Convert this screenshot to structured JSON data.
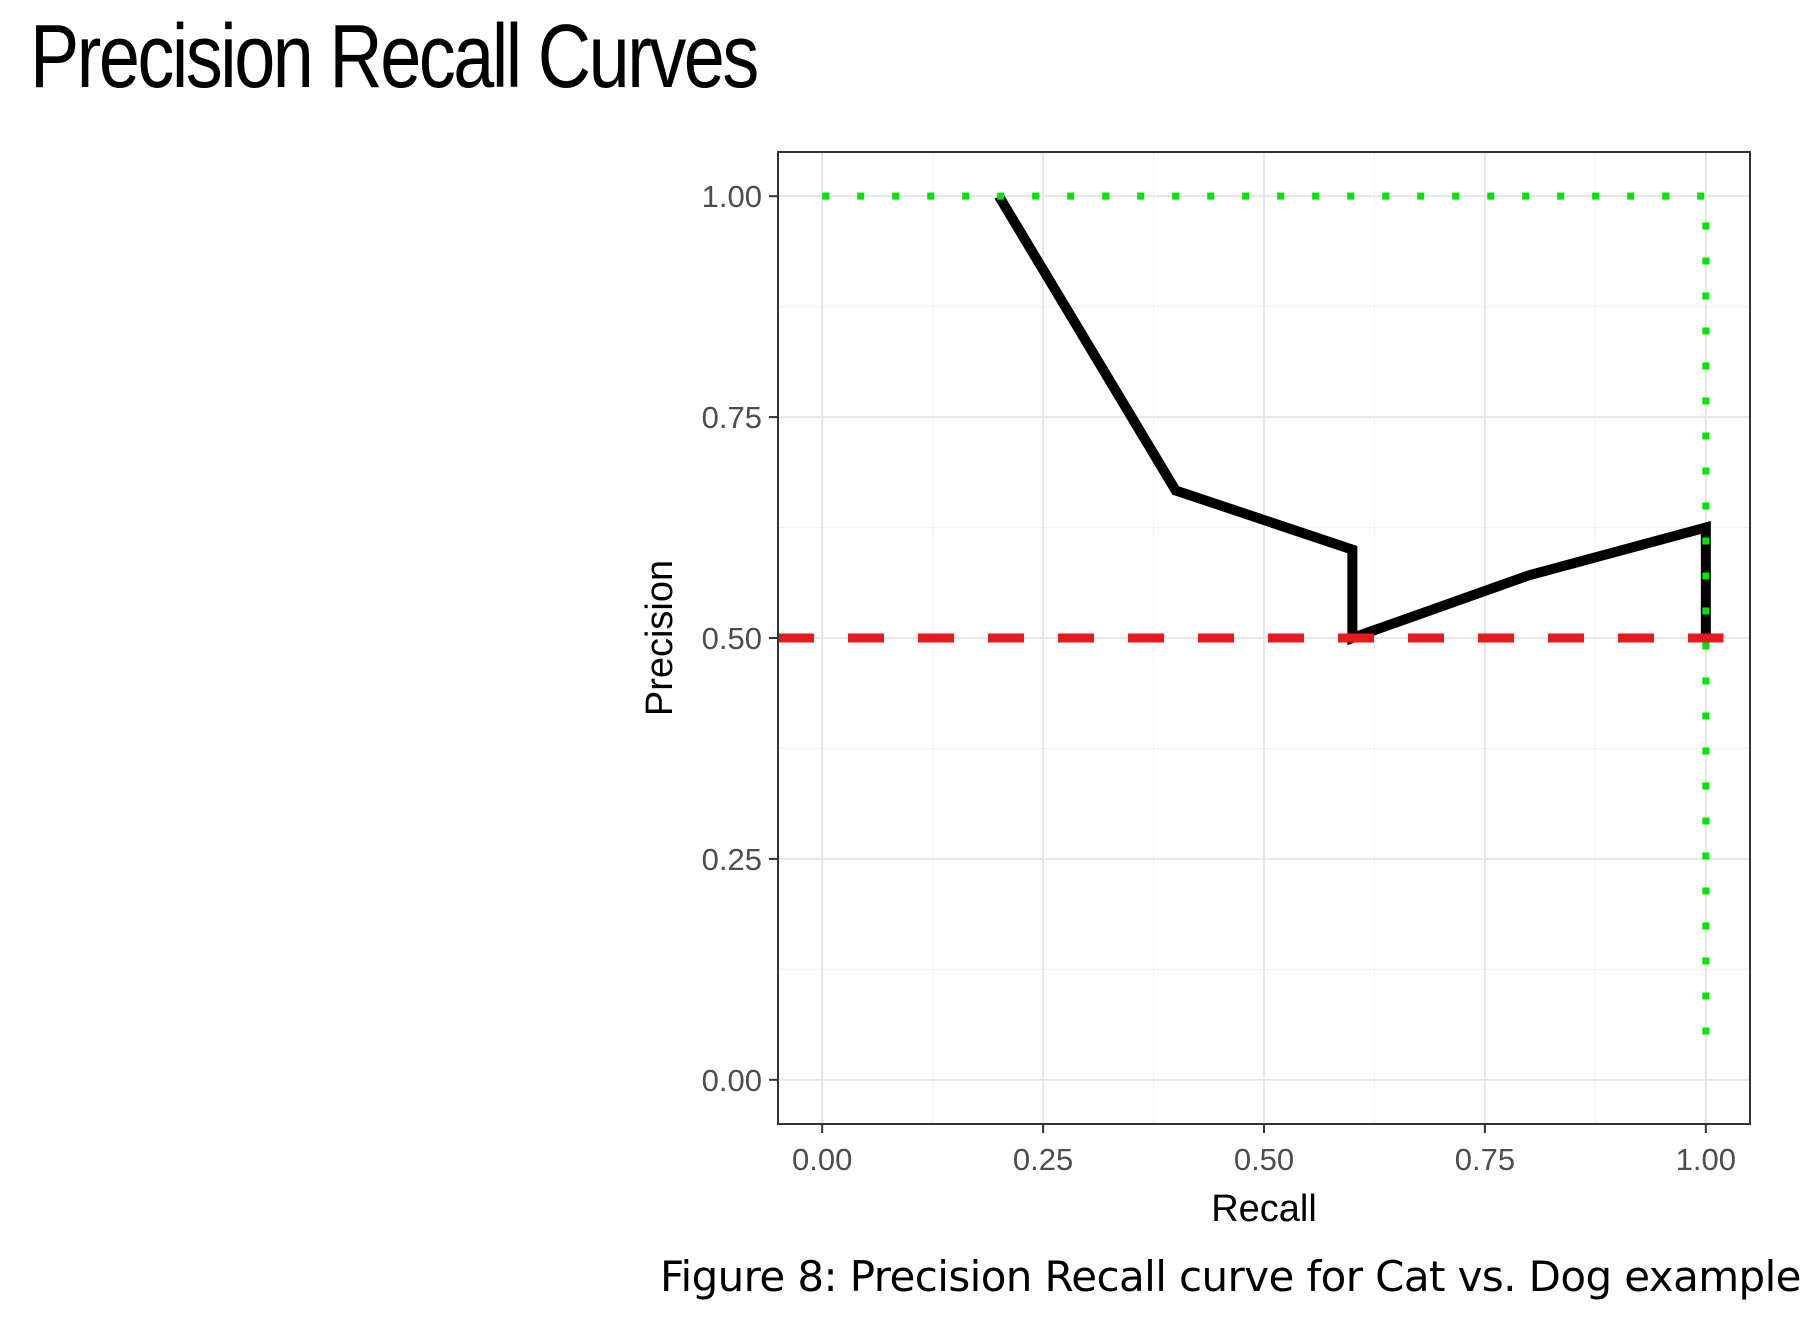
{
  "slide": {
    "title": "Precision Recall Curves"
  },
  "figure": {
    "caption": "Figure 8: Precision Recall curve for Cat vs. Dog example"
  },
  "chart_data": {
    "type": "line",
    "title": "",
    "xlabel": "Recall",
    "ylabel": "Precision",
    "xlim": [
      -0.05,
      1.05
    ],
    "ylim": [
      -0.05,
      1.05
    ],
    "x_ticks": [
      "0.00",
      "0.25",
      "0.50",
      "0.75",
      "1.00"
    ],
    "y_ticks": [
      "0.00",
      "0.25",
      "0.50",
      "0.75",
      "1.00"
    ],
    "grid": true,
    "series": [
      {
        "style": "solid",
        "color": "#000000",
        "x": [
          0.2,
          0.4,
          0.6,
          0.6,
          0.8,
          1.0,
          1.0
        ],
        "y": [
          1.0,
          0.667,
          0.6,
          0.5,
          0.571,
          0.625,
          0.5
        ]
      },
      {
        "style": "dashed",
        "color": "#e41a1c",
        "x": [
          -0.05,
          1.02
        ],
        "y": [
          0.5,
          0.5
        ]
      },
      {
        "style": "dotted",
        "color": "#00e600",
        "x": [
          0.0,
          1.0,
          1.0
        ],
        "y": [
          1.0,
          1.0,
          0.02
        ]
      }
    ]
  }
}
